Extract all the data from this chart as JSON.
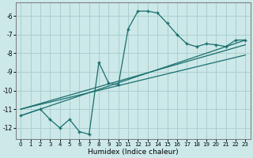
{
  "xlabel": "Humidex (Indice chaleur)",
  "bg_color": "#cce8e8",
  "grid_color": "#aacfcf",
  "line_color": "#1a6e6e",
  "xlim": [
    -0.5,
    23.5
  ],
  "ylim": [
    -12.6,
    -5.3
  ],
  "yticks": [
    -12,
    -11,
    -10,
    -9,
    -8,
    -7,
    -6
  ],
  "xticks": [
    0,
    1,
    2,
    3,
    4,
    5,
    6,
    7,
    8,
    9,
    10,
    11,
    12,
    13,
    14,
    15,
    16,
    17,
    18,
    19,
    20,
    21,
    22,
    23
  ],
  "series1_x": [
    0,
    2,
    3,
    4,
    5,
    6,
    7,
    8,
    9,
    10,
    11,
    12,
    13,
    14,
    15,
    16,
    17,
    18,
    19,
    20,
    21,
    22,
    23
  ],
  "series1_y": [
    -11.35,
    -11.0,
    -11.55,
    -12.0,
    -11.55,
    -12.2,
    -12.35,
    -8.5,
    -9.6,
    -9.7,
    -6.7,
    -5.75,
    -5.75,
    -5.85,
    -6.4,
    -7.0,
    -7.5,
    -7.65,
    -7.5,
    -7.55,
    -7.65,
    -7.3,
    -7.3
  ],
  "trend1_x": [
    0,
    23
  ],
  "trend1_y": [
    -11.35,
    -7.3
  ],
  "trend2_x": [
    0,
    23
  ],
  "trend2_y": [
    -11.0,
    -7.55
  ],
  "trend3_x": [
    0,
    23
  ],
  "trend3_y": [
    -11.0,
    -8.1
  ]
}
